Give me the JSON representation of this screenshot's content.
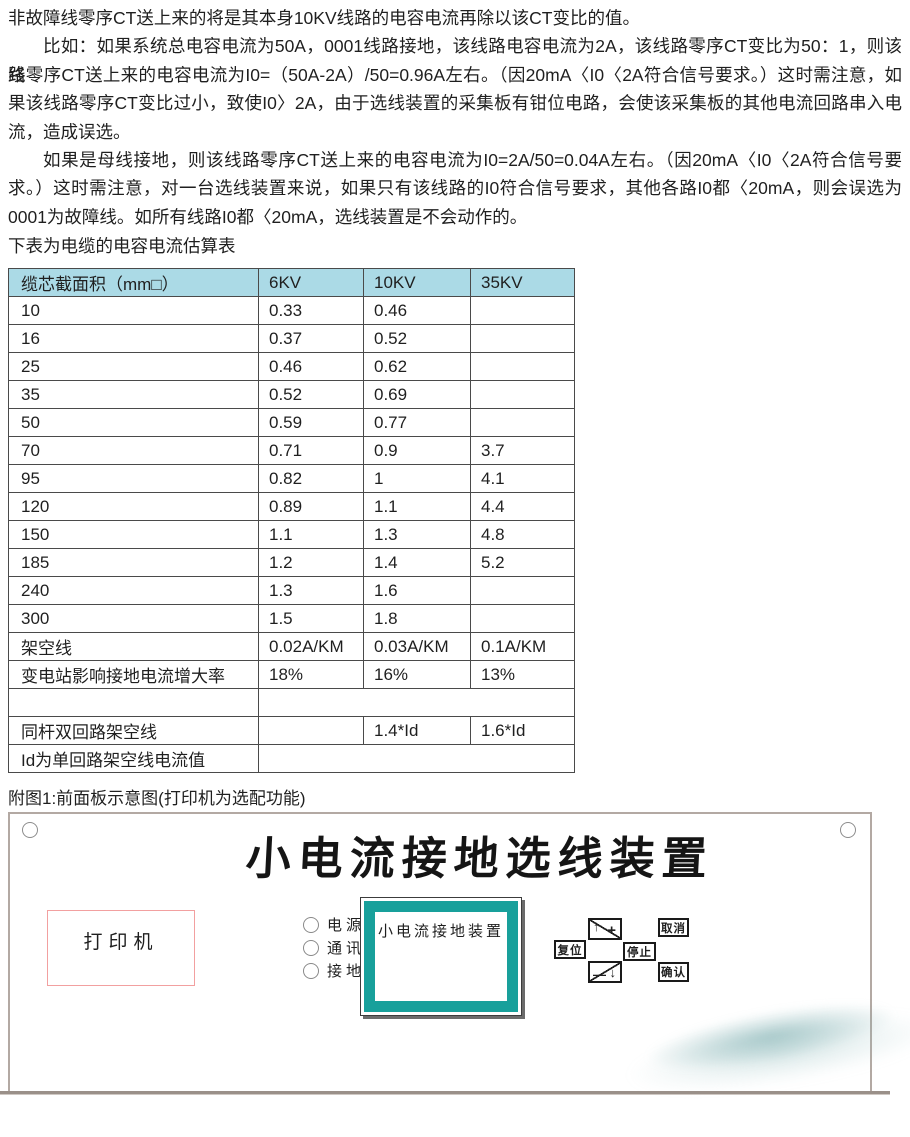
{
  "colors": {
    "table_header_bg": "#abdae6",
    "table_border": "#4a4a4a",
    "screen_teal": "#18a09b",
    "printer_border": "#f2a0a0",
    "panel_border": "#b3a9a3",
    "wave_teal": "#8fb8ba"
  },
  "paragraphs": [
    {
      "t": "非故障线零序CT送上来的将是其本身10KV线路的电容电流再除以该CT变比的值。",
      "j": false,
      "ind": false
    },
    {
      "t": "比如：如果系统总电容电流为50A，0001线路接地，该线路电容电流为2A，该线路零序CT变比为50：1，则该线",
      "j": true,
      "ind": true
    },
    {
      "t": "路零序CT送上来的电容电流为I0=（50A-2A）/50=0.96A左右。（因20mA〈I0〈2A符合信号要求。）这时需注意，如",
      "j": true,
      "ind": false
    },
    {
      "t": "果该线路零序CT变比过小，致使I0〉2A，由于选线装置的采集板有钳位电路，会使该采集板的其他电流回路串入电",
      "j": true,
      "ind": false
    },
    {
      "t": "流，造成误选。",
      "j": false,
      "ind": false
    },
    {
      "t": "如果是母线接地，则该线路零序CT送上来的电容电流为I0=2A/50=0.04A左右。（因20mA〈I0〈2A符合信号要",
      "j": true,
      "ind": true
    },
    {
      "t": "求。）这时需注意，对一台选线装置来说，如果只有该线路的I0符合信号要求，其他各路I0都〈20mA，则会误选为",
      "j": true,
      "ind": false
    },
    {
      "t": "0001为故障线。如所有线路I0都〈20mA，选线装置是不会动作的。",
      "j": false,
      "ind": false
    }
  ],
  "table_caption": "下表为电缆的电容电流估算表",
  "table": {
    "headers": [
      "缆芯截面积（mm□）",
      "6KV",
      "10KV",
      "35KV"
    ],
    "rows": [
      {
        "cells": [
          "10",
          "0.33",
          "0.46",
          ""
        ]
      },
      {
        "cells": [
          "16",
          "0.37",
          "0.52",
          ""
        ]
      },
      {
        "cells": [
          "25",
          "0.46",
          "0.62",
          ""
        ]
      },
      {
        "cells": [
          "35",
          "0.52",
          "0.69",
          ""
        ]
      },
      {
        "cells": [
          "50",
          "0.59",
          "0.77",
          ""
        ]
      },
      {
        "cells": [
          "70",
          "0.71",
          "0.9",
          "3.7"
        ]
      },
      {
        "cells": [
          "95",
          "0.82",
          "1",
          "4.1"
        ]
      },
      {
        "cells": [
          "120",
          "0.89",
          "1.1",
          "4.4"
        ]
      },
      {
        "cells": [
          "150",
          "1.1",
          "1.3",
          "4.8"
        ]
      },
      {
        "cells": [
          "185",
          "1.2",
          "1.4",
          "5.2"
        ]
      },
      {
        "cells": [
          "240",
          "1.3",
          "1.6",
          ""
        ]
      },
      {
        "cells": [
          "300",
          "1.5",
          "1.8",
          ""
        ]
      },
      {
        "cells": [
          "架空线",
          "0.02A/KM",
          "0.03A/KM",
          "0.1A/KM"
        ]
      },
      {
        "cells": [
          "变电站影响接地电流增大率",
          "18%",
          "16%",
          "13%"
        ]
      },
      {
        "cells": [
          "",
          "",
          "",
          ""
        ],
        "merge_right": true
      },
      {
        "cells": [
          "同杆双回路架空线",
          "",
          "1.4*Id",
          "1.6*Id"
        ]
      },
      {
        "cells": [
          "Id为单回路架空线电流值",
          "",
          "",
          ""
        ],
        "merge_right": true
      }
    ]
  },
  "figure_caption": "附图1:前面板示意图(打印机为选配功能)",
  "panel": {
    "title": "小电流接地选线装置",
    "printer_label": "打印机",
    "leds": [
      {
        "label": "电源"
      },
      {
        "label": "通讯"
      },
      {
        "label": "接地"
      }
    ],
    "screen_text": "小电流接地装置",
    "buttons": {
      "up_arrow": "↑",
      "plus": "+",
      "minus": "—",
      "down_arrow": "↓",
      "reset": "复位",
      "stop": "停止",
      "cancel": "取消",
      "confirm": "确认"
    }
  }
}
